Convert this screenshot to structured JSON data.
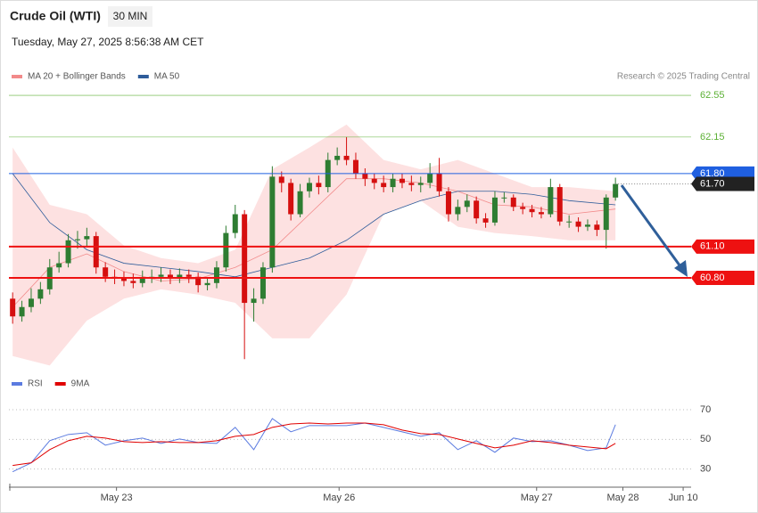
{
  "chart_data": [
    {
      "type": "candlestick",
      "title": "Crude Oil (WTI)",
      "interval": "30 MIN",
      "subtitle": "Tuesday, May 27, 2025 8:56:38 AM CET",
      "source": "Research © 2025 Trading Central",
      "xlim": [
        -0.4,
        79.6
      ],
      "ylim": [
        59.92,
        62.61
      ],
      "band_color": "#fde1e1",
      "candles": {
        "up_color": "#2e7d32",
        "down_color": "#d50f0f",
        "x": [
          0,
          1,
          2,
          3,
          4,
          5,
          6,
          7,
          8,
          9,
          10,
          11,
          12,
          13,
          14,
          15,
          16,
          17,
          18,
          19,
          20,
          21,
          22,
          23,
          24,
          25,
          26,
          27,
          28,
          29,
          30,
          31,
          32,
          33,
          34,
          35,
          36,
          37,
          38,
          39,
          40,
          41,
          42,
          43,
          44,
          45,
          46,
          47,
          48,
          49,
          50,
          51,
          52,
          53,
          54,
          55,
          56,
          57,
          58,
          59,
          60,
          61,
          62,
          63,
          64,
          65
        ],
        "open": [
          60.6,
          60.43,
          60.52,
          60.6,
          60.69,
          60.9,
          60.94,
          61.16,
          61.17,
          61.2,
          60.9,
          60.81,
          60.8,
          60.77,
          60.75,
          60.8,
          60.81,
          60.83,
          60.8,
          60.83,
          60.81,
          60.73,
          60.75,
          60.9,
          61.23,
          61.41,
          60.56,
          60.6,
          60.9,
          61.77,
          61.71,
          61.41,
          61.63,
          61.71,
          61.67,
          61.93,
          61.97,
          61.93,
          61.8,
          61.75,
          61.71,
          61.67,
          61.75,
          61.71,
          61.69,
          61.71,
          61.8,
          61.63,
          61.41,
          61.48,
          61.54,
          61.37,
          61.33,
          61.57,
          61.57,
          61.48,
          61.46,
          61.43,
          61.41,
          61.67,
          61.34,
          61.34,
          61.29,
          61.31,
          61.26,
          61.57
        ],
        "high": [
          60.66,
          60.58,
          60.7,
          60.76,
          60.98,
          61.05,
          61.22,
          61.25,
          61.28,
          61.24,
          60.95,
          60.88,
          60.86,
          60.84,
          60.87,
          60.88,
          60.9,
          60.88,
          60.89,
          60.88,
          60.85,
          60.8,
          60.96,
          61.3,
          61.5,
          61.45,
          60.7,
          60.95,
          61.87,
          61.82,
          61.75,
          61.7,
          61.76,
          61.78,
          62.0,
          62.05,
          62.15,
          62.0,
          61.85,
          61.8,
          61.78,
          61.8,
          61.8,
          61.78,
          61.77,
          61.9,
          61.95,
          61.67,
          61.55,
          61.6,
          61.58,
          61.42,
          61.63,
          61.62,
          61.6,
          61.52,
          61.5,
          61.48,
          61.75,
          61.7,
          61.4,
          61.38,
          61.36,
          61.35,
          61.6,
          61.76
        ],
        "low": [
          60.36,
          60.38,
          60.47,
          60.55,
          60.64,
          60.85,
          60.9,
          61.08,
          61.1,
          60.84,
          60.76,
          60.74,
          60.72,
          60.7,
          60.71,
          60.75,
          60.76,
          60.74,
          60.75,
          60.75,
          60.66,
          60.68,
          60.7,
          60.86,
          61.18,
          60.02,
          60.38,
          60.55,
          60.85,
          61.62,
          61.35,
          61.38,
          61.57,
          61.6,
          61.62,
          61.88,
          61.88,
          61.75,
          61.68,
          61.65,
          61.62,
          61.62,
          61.66,
          61.63,
          61.62,
          61.66,
          61.58,
          61.34,
          61.35,
          61.43,
          61.32,
          61.28,
          61.3,
          61.52,
          61.44,
          61.41,
          61.38,
          61.37,
          61.38,
          61.3,
          61.28,
          61.24,
          61.25,
          61.2,
          61.08,
          61.54
        ],
        "close": [
          60.43,
          60.52,
          60.6,
          60.69,
          60.9,
          60.94,
          61.16,
          61.17,
          61.2,
          60.9,
          60.81,
          60.8,
          60.77,
          60.75,
          60.8,
          60.81,
          60.83,
          60.8,
          60.83,
          60.81,
          60.73,
          60.75,
          60.9,
          61.23,
          61.41,
          60.56,
          60.6,
          60.9,
          61.77,
          61.71,
          61.41,
          61.63,
          61.71,
          61.67,
          61.93,
          61.97,
          61.93,
          61.8,
          61.75,
          61.71,
          61.67,
          61.75,
          61.71,
          61.69,
          61.71,
          61.8,
          61.63,
          61.41,
          61.48,
          61.54,
          61.37,
          61.33,
          61.57,
          61.57,
          61.48,
          61.46,
          61.43,
          61.41,
          61.67,
          61.34,
          61.34,
          61.29,
          61.31,
          61.26,
          61.57,
          61.7
        ]
      },
      "series": [
        {
          "name": "MA 20 + Bollinger Bands",
          "color": "#f28a8a",
          "x": [
            0,
            4,
            8,
            12,
            16,
            20,
            24,
            28,
            32,
            36,
            40,
            44,
            48,
            52,
            56,
            60,
            65
          ],
          "values": [
            60.52,
            60.9,
            61.03,
            60.86,
            60.77,
            60.79,
            60.9,
            61.07,
            61.41,
            61.75,
            61.75,
            61.71,
            61.63,
            61.5,
            61.48,
            61.41,
            61.46
          ],
          "upper": [
            62.05,
            61.5,
            61.41,
            61.11,
            60.99,
            60.94,
            61.07,
            61.84,
            62.05,
            62.27,
            61.93,
            61.84,
            61.93,
            61.8,
            61.67,
            61.67,
            61.63
          ],
          "lower": [
            60.05,
            59.96,
            60.39,
            60.6,
            60.69,
            60.64,
            60.56,
            60.22,
            60.22,
            60.64,
            61.41,
            61.54,
            61.29,
            61.23,
            61.2,
            61.16,
            61.16
          ]
        },
        {
          "name": "MA 50",
          "color": "#2e5c9a",
          "x": [
            0,
            4,
            8,
            12,
            16,
            20,
            24,
            28,
            32,
            36,
            40,
            44,
            48,
            52,
            56,
            60,
            65
          ],
          "values": [
            61.8,
            61.33,
            61.07,
            60.94,
            60.9,
            60.86,
            60.81,
            60.9,
            60.99,
            61.16,
            61.41,
            61.54,
            61.63,
            61.63,
            61.6,
            61.54,
            61.5
          ]
        }
      ],
      "levels": [
        {
          "value": 62.55,
          "color": "#5cb035",
          "width": 0.6,
          "tag": false
        },
        {
          "value": 62.15,
          "color": "#5cb035",
          "width": 0.6,
          "tag": false
        },
        {
          "value": 61.8,
          "label": "61.80",
          "color": "#1f5fe0",
          "width": 1,
          "tag": true
        },
        {
          "value": 61.7,
          "label": "61.70",
          "color": "#222222",
          "width": 1,
          "tag": true,
          "dash": true
        },
        {
          "value": 61.1,
          "label": "61.10",
          "color": "#ee1111",
          "width": 2,
          "tag": true
        },
        {
          "value": 60.8,
          "label": "60.80",
          "color": "#ee1111",
          "width": 2,
          "tag": true
        }
      ]
    },
    {
      "type": "line",
      "xlim": [
        -0.4,
        79.6
      ],
      "ylim": [
        22,
        76
      ],
      "yticks": [
        30,
        50,
        70
      ],
      "grid": true,
      "xticks": [
        {
          "value": 11.2,
          "label": "May 23"
        },
        {
          "value": 35.2,
          "label": "May 26"
        },
        {
          "value": 56.5,
          "label": "May 27"
        },
        {
          "value": 65.8,
          "label": "May 28"
        },
        {
          "value": 72.3,
          "label": "Jun 10"
        }
      ],
      "series": [
        {
          "name": "RSI",
          "color": "#5b7be0",
          "x": [
            0,
            2,
            4,
            6,
            8,
            10,
            12,
            14,
            16,
            18,
            20,
            22,
            24,
            26,
            28,
            30,
            32,
            34,
            36,
            38,
            40,
            42,
            44,
            46,
            48,
            50,
            52,
            54,
            56,
            58,
            60,
            62,
            64,
            65
          ],
          "values": [
            28.2,
            34.2,
            49.1,
            53.3,
            54.5,
            46.1,
            49.1,
            50.9,
            47.3,
            50.3,
            47.9,
            47.3,
            58.1,
            43.1,
            64.0,
            55.1,
            59.3,
            59.3,
            59.3,
            61.0,
            58.1,
            55.1,
            52.1,
            54.5,
            43.1,
            49.1,
            41.3,
            50.9,
            48.5,
            49.1,
            46.1,
            42.5,
            44.3,
            59.9
          ]
        },
        {
          "name": "9MA",
          "color": "#e00000",
          "x": [
            0,
            2,
            4,
            6,
            8,
            10,
            12,
            14,
            16,
            18,
            20,
            22,
            24,
            26,
            28,
            30,
            32,
            34,
            36,
            38,
            40,
            42,
            44,
            46,
            48,
            50,
            52,
            54,
            56,
            58,
            60,
            62,
            64,
            65
          ],
          "values": [
            32.4,
            34.2,
            43.1,
            49.1,
            52.1,
            50.9,
            48.5,
            47.9,
            48.5,
            47.9,
            47.9,
            49.1,
            52.1,
            53.3,
            58.1,
            60.4,
            61.0,
            60.4,
            61.0,
            61.0,
            59.9,
            56.3,
            53.9,
            53.3,
            50.3,
            47.3,
            44.3,
            46.1,
            49.1,
            47.9,
            46.1,
            44.9,
            43.7,
            47.3
          ]
        }
      ]
    }
  ]
}
